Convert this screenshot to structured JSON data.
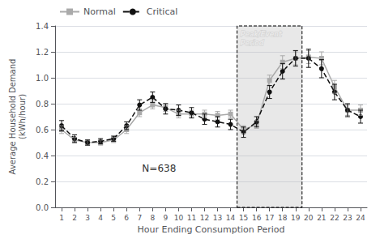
{
  "chart_data": {
    "type": "line",
    "x": [
      1,
      2,
      3,
      4,
      5,
      6,
      7,
      8,
      9,
      10,
      11,
      12,
      13,
      14,
      15,
      16,
      17,
      18,
      19,
      20,
      21,
      22,
      23,
      24
    ],
    "series": [
      {
        "name": "Normal",
        "color": "#aaaaaa",
        "marker": "square",
        "line_style": "solid",
        "values": [
          0.6,
          0.52,
          0.5,
          0.5,
          0.52,
          0.6,
          0.73,
          0.79,
          0.77,
          0.72,
          0.72,
          0.72,
          0.71,
          0.72,
          0.6,
          0.64,
          0.98,
          1.12,
          1.15,
          1.16,
          1.15,
          0.93,
          0.75,
          0.75
        ],
        "errors": [
          0.03,
          0.02,
          0.02,
          0.02,
          0.02,
          0.03,
          0.03,
          0.03,
          0.03,
          0.03,
          0.03,
          0.03,
          0.03,
          0.03,
          0.03,
          0.03,
          0.04,
          0.05,
          0.05,
          0.05,
          0.05,
          0.05,
          0.04,
          0.04
        ]
      },
      {
        "name": "Critical",
        "color": "#111111",
        "marker": "circle",
        "line_style": "dashed",
        "values": [
          0.63,
          0.53,
          0.5,
          0.51,
          0.53,
          0.63,
          0.79,
          0.85,
          0.76,
          0.75,
          0.73,
          0.68,
          0.66,
          0.64,
          0.58,
          0.66,
          0.89,
          1.05,
          1.15,
          1.15,
          1.07,
          0.89,
          0.75,
          0.7
        ],
        "errors": [
          0.04,
          0.03,
          0.02,
          0.02,
          0.02,
          0.03,
          0.04,
          0.04,
          0.04,
          0.04,
          0.04,
          0.04,
          0.04,
          0.04,
          0.04,
          0.04,
          0.05,
          0.06,
          0.06,
          0.07,
          0.07,
          0.06,
          0.05,
          0.05
        ]
      }
    ],
    "xlabel": "Hour Ending Consumption Period",
    "ylabel": "Average Household Demand\n(kWh/hour)",
    "xlim": [
      0.5,
      24.5
    ],
    "xticks": [
      1,
      2,
      3,
      4,
      5,
      6,
      7,
      8,
      9,
      10,
      11,
      12,
      13,
      14,
      15,
      16,
      17,
      18,
      19,
      20,
      21,
      22,
      23,
      24
    ],
    "ylim": [
      0.0,
      1.4
    ],
    "yticks": [
      {
        "value": 0.0,
        "label": "0.0"
      },
      0.2,
      0.4,
      0.6,
      0.8,
      {
        "value": 1.0,
        "label": "1.0"
      },
      1.2,
      1.4
    ],
    "grid": true,
    "legend": "upper left",
    "shaded_regions": [
      {
        "x": [
          14.5,
          19.5
        ],
        "label": "Peak/Event\nPeriod"
      }
    ],
    "annotations": [
      {
        "text": "N=638",
        "x": 8.5,
        "y": 0.3
      }
    ]
  }
}
